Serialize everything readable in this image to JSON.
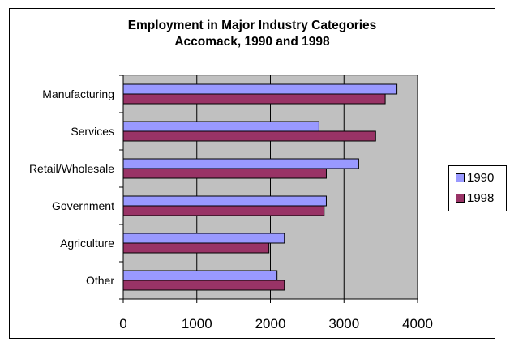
{
  "chart_data": {
    "type": "bar",
    "orientation": "horizontal",
    "title": [
      "Employment in Major Industry Categories",
      "Accomack, 1990 and 1998"
    ],
    "categories": [
      "Manufacturing",
      "Services",
      "Retail/Wholesale",
      "Government",
      "Agriculture",
      "Other"
    ],
    "series": [
      {
        "name": "1990",
        "color": "#9999ff",
        "values": [
          3720,
          2660,
          3200,
          2760,
          2190,
          2090
        ]
      },
      {
        "name": "1998",
        "color": "#993366",
        "values": [
          3560,
          3430,
          2760,
          2730,
          1980,
          2190
        ]
      }
    ],
    "xlabel": "",
    "ylabel": "",
    "xlim": [
      0,
      4000
    ],
    "xticks": [
      "0",
      "1000",
      "2000",
      "3000",
      "4000"
    ],
    "grid": "vertical major gridlines",
    "plot_background": "#c0c0c0",
    "legend_position": "right"
  }
}
